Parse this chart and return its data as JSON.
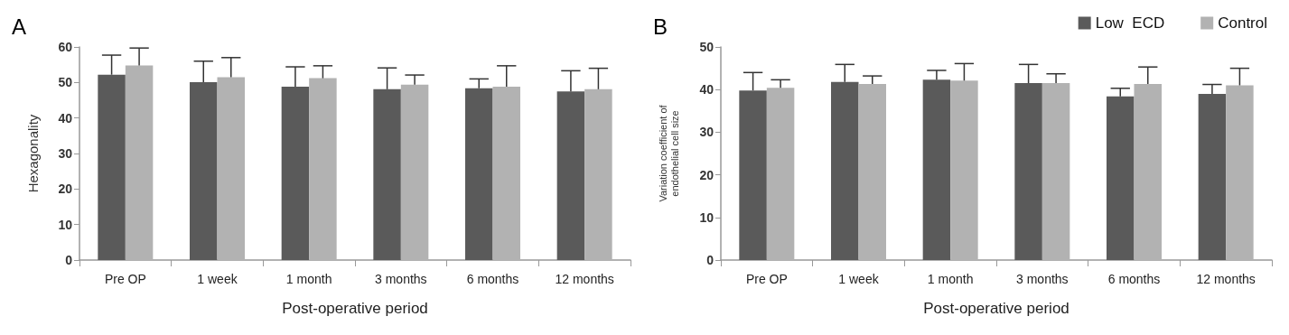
{
  "chart_data": [
    {
      "type": "bar",
      "title": "A",
      "xlabel": "Post-operative period",
      "ylabel": "Hexagonality",
      "categories": [
        "Pre OP",
        "1 week",
        "1 month",
        "3 months",
        "6 months",
        "12 months"
      ],
      "series": [
        {
          "color": "#5a5a5a",
          "values": [
            52.2,
            50.1,
            48.8,
            48.1,
            48.4,
            47.5
          ],
          "errors": [
            [
              52.2,
              57.7
            ],
            [
              50.1,
              56.0
            ],
            [
              48.8,
              54.4
            ],
            [
              48.1,
              54.1
            ],
            [
              48.4,
              51.0
            ],
            [
              47.5,
              53.3
            ]
          ]
        },
        {
          "color": "#b2b2b2",
          "values": [
            54.8,
            51.5,
            51.2,
            49.4,
            48.8,
            48.1
          ],
          "errors": [
            [
              54.8,
              59.7
            ],
            [
              51.5,
              57.0
            ],
            [
              51.2,
              54.7
            ],
            [
              49.4,
              52.1
            ],
            [
              48.8,
              54.7
            ],
            [
              48.1,
              54.0
            ]
          ]
        }
      ],
      "ylim": [
        0,
        60
      ],
      "yticks": [
        0,
        10,
        20,
        30,
        40,
        50,
        60
      ],
      "grid": false,
      "legend": false
    },
    {
      "type": "bar",
      "title": "B",
      "xlabel": "Post-operative period",
      "ylabel": "Variation coefficient of\nendothelial cell size",
      "categories": [
        "Pre OP",
        "1 week",
        "1 month",
        "3 months",
        "6 months",
        "12 months"
      ],
      "series": [
        {
          "name": "Low  ECD",
          "color": "#5a5a5a",
          "values": [
            39.8,
            41.8,
            42.3,
            41.5,
            38.4,
            39.0
          ],
          "errors": [
            [
              39.8,
              44.0
            ],
            [
              41.8,
              45.9
            ],
            [
              42.3,
              44.5
            ],
            [
              41.5,
              45.9
            ],
            [
              38.4,
              40.3
            ],
            [
              39.0,
              41.2
            ]
          ]
        },
        {
          "name": "Control",
          "color": "#b2b2b2",
          "values": [
            40.4,
            41.3,
            42.1,
            41.5,
            41.3,
            41.0
          ],
          "errors": [
            [
              40.4,
              42.3
            ],
            [
              41.3,
              43.2
            ],
            [
              42.1,
              46.1
            ],
            [
              41.5,
              43.7
            ],
            [
              41.3,
              45.3
            ],
            [
              41.0,
              45.0
            ]
          ]
        }
      ],
      "ylim": [
        0,
        50
      ],
      "yticks": [
        0,
        10,
        20,
        30,
        40,
        50
      ],
      "grid": false,
      "legend": "top right"
    }
  ]
}
